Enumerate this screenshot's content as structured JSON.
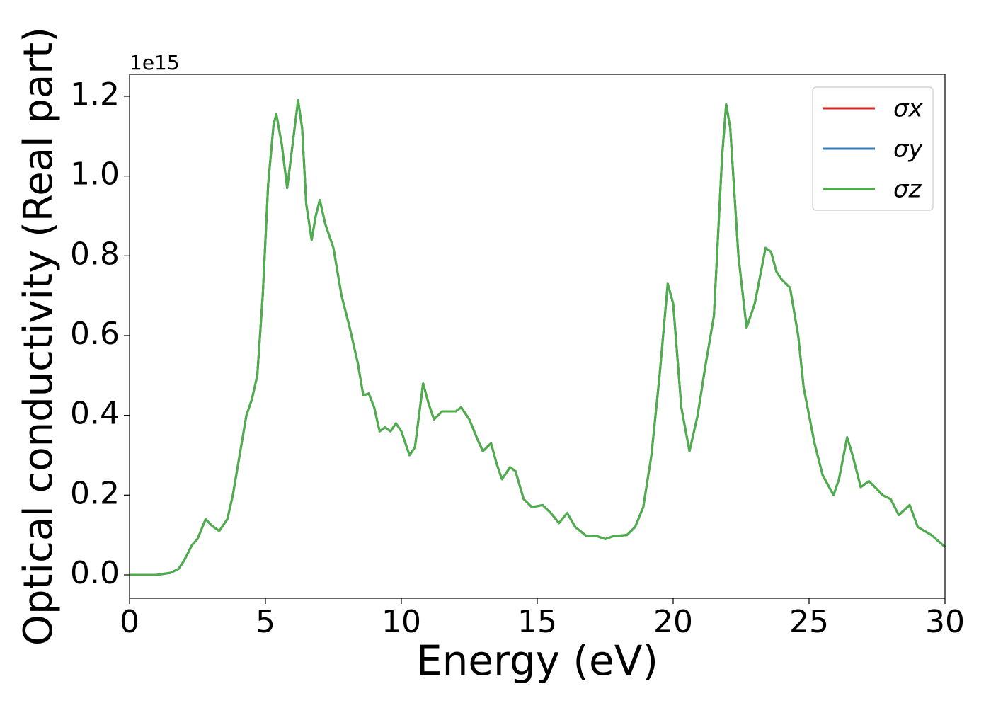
{
  "chart_data": {
    "type": "line",
    "x_label": "Energy (eV)",
    "y_label": "Optical conductivity (Real part)",
    "y_offset_label": "1e15",
    "xlim": [
      0,
      30
    ],
    "xticks": [
      0,
      5,
      10,
      15,
      20,
      25,
      30
    ],
    "ylim": [
      -0.0586,
      1.255
    ],
    "yticks": [
      {
        "value": 0,
        "label": "0.0"
      },
      0.2,
      0.4,
      0.6,
      0.8,
      {
        "value": 1,
        "label": "1.0"
      },
      1.2
    ],
    "legend": "upper right",
    "x": [
      0,
      1,
      1.5,
      1.8,
      2.0,
      2.3,
      2.5,
      2.8,
      3.0,
      3.3,
      3.6,
      3.8,
      4.0,
      4.3,
      4.5,
      4.7,
      4.9,
      5.1,
      5.3,
      5.4,
      5.6,
      5.8,
      6.0,
      6.2,
      6.35,
      6.5,
      6.7,
      6.85,
      7.0,
      7.2,
      7.5,
      7.8,
      8.1,
      8.4,
      8.6,
      8.8,
      9.0,
      9.2,
      9.4,
      9.6,
      9.8,
      10.0,
      10.3,
      10.5,
      10.8,
      11.0,
      11.2,
      11.5,
      12.0,
      12.2,
      12.5,
      12.8,
      13.0,
      13.3,
      13.5,
      13.7,
      14.0,
      14.2,
      14.5,
      14.8,
      15.2,
      15.5,
      15.8,
      16.1,
      16.4,
      16.8,
      17.2,
      17.5,
      17.8,
      18.3,
      18.6,
      18.9,
      19.2,
      19.5,
      19.8,
      20.0,
      20.3,
      20.6,
      20.9,
      21.2,
      21.5,
      21.8,
      21.95,
      22.1,
      22.4,
      22.7,
      23.0,
      23.4,
      23.6,
      23.8,
      24.0,
      24.3,
      24.6,
      24.8,
      25.2,
      25.5,
      25.9,
      26.1,
      26.4,
      26.6,
      26.9,
      27.2,
      27.5,
      27.7,
      28.0,
      28.3,
      28.7,
      29.0,
      29.5,
      30
    ],
    "series": [
      {
        "name": "σx",
        "color": "#d62728",
        "values": [
          0,
          0,
          0.005,
          0.015,
          0.035,
          0.075,
          0.09,
          0.14,
          0.125,
          0.11,
          0.14,
          0.2,
          0.28,
          0.4,
          0.44,
          0.5,
          0.7,
          0.98,
          1.13,
          1.155,
          1.08,
          0.97,
          1.08,
          1.19,
          1.12,
          0.93,
          0.84,
          0.9,
          0.94,
          0.88,
          0.82,
          0.7,
          0.62,
          0.53,
          0.45,
          0.455,
          0.42,
          0.36,
          0.37,
          0.36,
          0.38,
          0.36,
          0.3,
          0.32,
          0.48,
          0.43,
          0.39,
          0.41,
          0.41,
          0.42,
          0.39,
          0.34,
          0.31,
          0.33,
          0.28,
          0.24,
          0.27,
          0.26,
          0.19,
          0.17,
          0.175,
          0.155,
          0.13,
          0.155,
          0.12,
          0.098,
          0.097,
          0.09,
          0.097,
          0.1,
          0.12,
          0.17,
          0.3,
          0.5,
          0.73,
          0.68,
          0.42,
          0.31,
          0.4,
          0.53,
          0.65,
          1.05,
          1.18,
          1.12,
          0.8,
          0.62,
          0.68,
          0.82,
          0.81,
          0.76,
          0.74,
          0.72,
          0.6,
          0.47,
          0.33,
          0.25,
          0.2,
          0.24,
          0.345,
          0.3,
          0.22,
          0.235,
          0.215,
          0.2,
          0.19,
          0.15,
          0.175,
          0.12,
          0.1,
          0.07
        ]
      },
      {
        "name": "σy",
        "color": "#3a7ab5",
        "values": [
          0,
          0,
          0.005,
          0.015,
          0.035,
          0.075,
          0.09,
          0.14,
          0.125,
          0.11,
          0.14,
          0.2,
          0.28,
          0.4,
          0.44,
          0.5,
          0.7,
          0.98,
          1.13,
          1.155,
          1.08,
          0.97,
          1.08,
          1.19,
          1.12,
          0.93,
          0.84,
          0.9,
          0.94,
          0.88,
          0.82,
          0.7,
          0.62,
          0.53,
          0.45,
          0.455,
          0.42,
          0.36,
          0.37,
          0.36,
          0.38,
          0.36,
          0.3,
          0.32,
          0.48,
          0.43,
          0.39,
          0.41,
          0.41,
          0.42,
          0.39,
          0.34,
          0.31,
          0.33,
          0.28,
          0.24,
          0.27,
          0.26,
          0.19,
          0.17,
          0.175,
          0.155,
          0.13,
          0.155,
          0.12,
          0.098,
          0.097,
          0.09,
          0.097,
          0.1,
          0.12,
          0.17,
          0.3,
          0.5,
          0.73,
          0.68,
          0.42,
          0.31,
          0.4,
          0.53,
          0.65,
          1.05,
          1.18,
          1.12,
          0.8,
          0.62,
          0.68,
          0.82,
          0.81,
          0.76,
          0.74,
          0.72,
          0.6,
          0.47,
          0.33,
          0.25,
          0.2,
          0.24,
          0.345,
          0.3,
          0.22,
          0.235,
          0.215,
          0.2,
          0.19,
          0.15,
          0.175,
          0.12,
          0.1,
          0.07
        ]
      },
      {
        "name": "σz",
        "color": "#4daf4a",
        "values": [
          0,
          0,
          0.005,
          0.015,
          0.035,
          0.075,
          0.09,
          0.14,
          0.125,
          0.11,
          0.14,
          0.2,
          0.28,
          0.4,
          0.44,
          0.5,
          0.7,
          0.98,
          1.13,
          1.155,
          1.08,
          0.97,
          1.08,
          1.19,
          1.12,
          0.93,
          0.84,
          0.9,
          0.94,
          0.88,
          0.82,
          0.7,
          0.62,
          0.53,
          0.45,
          0.455,
          0.42,
          0.36,
          0.37,
          0.36,
          0.38,
          0.36,
          0.3,
          0.32,
          0.48,
          0.43,
          0.39,
          0.41,
          0.41,
          0.42,
          0.39,
          0.34,
          0.31,
          0.33,
          0.28,
          0.24,
          0.27,
          0.26,
          0.19,
          0.17,
          0.175,
          0.155,
          0.13,
          0.155,
          0.12,
          0.098,
          0.097,
          0.09,
          0.097,
          0.1,
          0.12,
          0.17,
          0.3,
          0.5,
          0.73,
          0.68,
          0.42,
          0.31,
          0.4,
          0.53,
          0.65,
          1.05,
          1.18,
          1.12,
          0.8,
          0.62,
          0.68,
          0.82,
          0.81,
          0.76,
          0.74,
          0.72,
          0.6,
          0.47,
          0.33,
          0.25,
          0.2,
          0.24,
          0.345,
          0.3,
          0.22,
          0.235,
          0.215,
          0.2,
          0.19,
          0.15,
          0.175,
          0.12,
          0.1,
          0.07
        ]
      }
    ]
  }
}
